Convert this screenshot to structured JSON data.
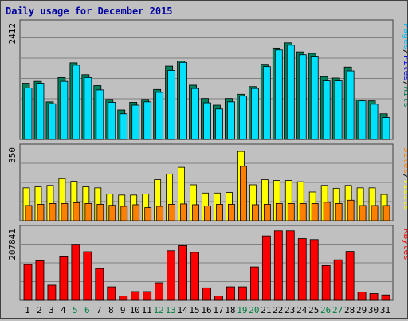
{
  "title": "Daily usage for December 2015",
  "colors": {
    "background": "#c0c0c0",
    "title": "#0000a0",
    "hits": "#00805c",
    "files": "#00e0ff",
    "visits": "#ffff00",
    "sites": "#ff8000",
    "kbytes": "#ff0000",
    "weekend_label": "#008040"
  },
  "panels": {
    "top": {
      "max_label": "2412",
      "legend": [
        {
          "text": "Hits",
          "color": "#00805c"
        },
        {
          "text": "Files",
          "color": "#0000ff"
        },
        {
          "text": "Pages",
          "color": "#00c0ff"
        }
      ]
    },
    "middle": {
      "max_label": "350",
      "legend": [
        {
          "text": "Visits",
          "color": "#ffff00"
        },
        {
          "text": "Sites",
          "color": "#ff8000"
        }
      ]
    },
    "bottom": {
      "max_label": "207841",
      "legend": [
        {
          "text": "KBytes",
          "color": "#ff0000"
        }
      ]
    }
  },
  "chart_data": {
    "type": "bar",
    "title": "Daily usage for December 2015",
    "categories": [
      "1",
      "2",
      "3",
      "4",
      "5",
      "6",
      "7",
      "8",
      "9",
      "10",
      "11",
      "12",
      "13",
      "14",
      "15",
      "16",
      "17",
      "18",
      "19",
      "20",
      "21",
      "22",
      "23",
      "24",
      "25",
      "26",
      "27",
      "28",
      "29",
      "30",
      "31"
    ],
    "weekend_days": [
      "5",
      "6",
      "12",
      "13",
      "19",
      "20",
      "26",
      "27"
    ],
    "grid": true,
    "panels": [
      {
        "name": "top",
        "ymax": 2412,
        "series": [
          {
            "name": "Hits",
            "values": [
              1180,
              1220,
              790,
              1300,
              1610,
              1360,
              1130,
              840,
              620,
              780,
              840,
              1050,
              1540,
              1650,
              1140,
              860,
              720,
              860,
              950,
              1110,
              1580,
              1920,
              2030,
              1840,
              1810,
              1320,
              1290,
              1520,
              830,
              810,
              540
            ]
          },
          {
            "name": "Files",
            "values": [
              1080,
              1180,
              750,
              1220,
              1560,
              1300,
              1040,
              780,
              540,
              720,
              790,
              990,
              1450,
              1620,
              1070,
              770,
              640,
              790,
              910,
              1070,
              1530,
              1880,
              1980,
              1780,
              1750,
              1230,
              1230,
              1440,
              810,
              740,
              460
            ]
          },
          {
            "name": "Pages",
            "values": [
              1080,
              1180,
              750,
              1220,
              1560,
              1300,
              1040,
              780,
              540,
              720,
              790,
              990,
              1450,
              1620,
              1070,
              770,
              640,
              790,
              910,
              1070,
              1530,
              1880,
              1980,
              1780,
              1750,
              1230,
              1230,
              1440,
              810,
              740,
              460
            ]
          }
        ]
      },
      {
        "name": "middle",
        "ymax": 350,
        "series": [
          {
            "name": "Visits",
            "values": [
              160,
              165,
              172,
              205,
              192,
              165,
              160,
              130,
              125,
              125,
              130,
              200,
              228,
              260,
              175,
              135,
              135,
              138,
              338,
              175,
              200,
              196,
              196,
              190,
              140,
              172,
              158,
              172,
              160,
              160,
              128
            ]
          },
          {
            "name": "Sites",
            "values": [
              74,
              80,
              84,
              84,
              88,
              84,
              80,
              75,
              70,
              78,
              64,
              70,
              80,
              82,
              78,
              72,
              80,
              80,
              265,
              78,
              80,
              84,
              84,
              84,
              84,
              90,
              84,
              100,
              74,
              74,
              74
            ]
          }
        ]
      },
      {
        "name": "bottom",
        "ymax": 207841,
        "series": [
          {
            "name": "KBytes",
            "values": [
              106000,
              117000,
              45000,
              129000,
              166000,
              144000,
              94000,
              40000,
              13000,
              26000,
              26000,
              52000,
              147000,
              162000,
              142000,
              37000,
              13000,
              40000,
              40000,
              99000,
              191000,
              206000,
              206000,
              183000,
              180000,
              103000,
              120000,
              145000,
              25000,
              20000,
              16000
            ]
          }
        ]
      }
    ]
  }
}
